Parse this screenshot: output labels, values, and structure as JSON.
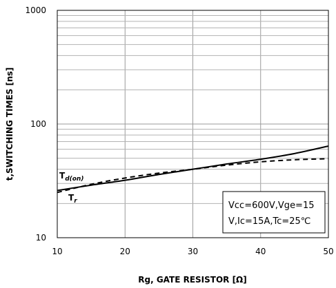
{
  "chart_data": {
    "type": "line",
    "title": "",
    "xlabel": "Rg, GATE RESISTOR [Ω]",
    "ylabel": "t,SWITCHING TIMES [ns]",
    "xlim": [
      10,
      50
    ],
    "ylim": [
      10,
      1000
    ],
    "y_scale": "log",
    "x_ticks": [
      "10",
      "20",
      "30",
      "40",
      "50"
    ],
    "y_ticks": [
      "10",
      "100",
      "1000"
    ],
    "grid": true,
    "annotation": [
      "Vcc=600V,Vge=15",
      "V,Ic=15A,Tc=25℃"
    ],
    "series": [
      {
        "name": "Td(on)",
        "label_main": "T",
        "label_sub": "d(on)",
        "style": "solid",
        "color": "#000000",
        "x": [
          10,
          15,
          20,
          25,
          30,
          35,
          40,
          45,
          50
        ],
        "y": [
          26,
          29,
          32,
          36,
          40,
          44.5,
          49,
          55,
          64
        ]
      },
      {
        "name": "Tr",
        "label_main": "T",
        "label_sub": "r",
        "style": "dashed",
        "color": "#000000",
        "x": [
          10,
          15,
          20,
          25,
          30,
          35,
          40,
          45,
          50
        ],
        "y": [
          25,
          29.5,
          33.5,
          37,
          40,
          43.5,
          46.5,
          48.5,
          49.5
        ]
      }
    ]
  }
}
